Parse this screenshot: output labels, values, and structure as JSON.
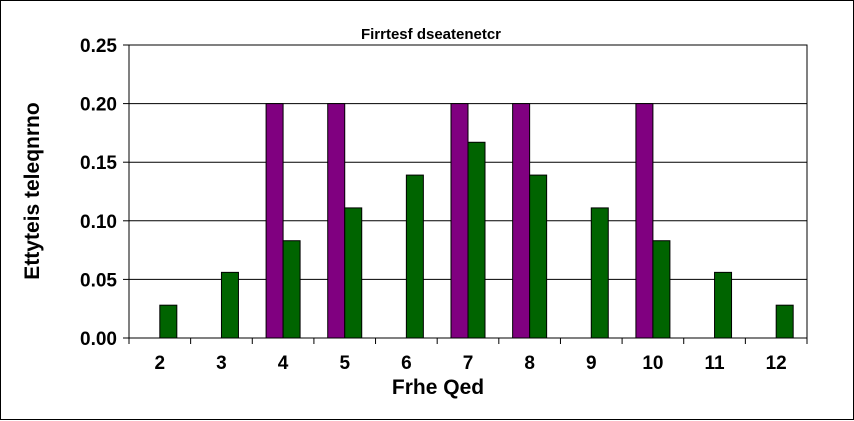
{
  "chart_data": {
    "type": "bar",
    "title": "Firrtesf dseatenetcr",
    "xlabel": "Frhe Qed",
    "ylabel": "Ettyteis teleqnrno",
    "categories": [
      "2",
      "3",
      "4",
      "5",
      "6",
      "7",
      "8",
      "9",
      "10",
      "11",
      "12"
    ],
    "series": [
      {
        "color": "#800080",
        "values": [
          0,
          0,
          0.2,
          0.2,
          0,
          0.2,
          0.2,
          0,
          0.2,
          0,
          0
        ]
      },
      {
        "color": "#006400",
        "values": [
          0.028,
          0.056,
          0.083,
          0.111,
          0.139,
          0.167,
          0.139,
          0.111,
          0.083,
          0.056,
          0.028
        ]
      }
    ],
    "ylim": [
      0,
      0.25
    ],
    "yticks": [
      "0.00",
      "0.05",
      "0.10",
      "0.15",
      "0.20",
      "0.25"
    ],
    "grid": true,
    "legend": "none"
  }
}
